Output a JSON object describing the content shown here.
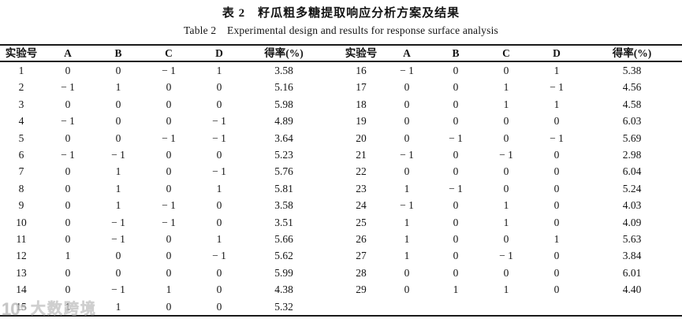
{
  "title": {
    "zh": "表 2　籽瓜粗多糖提取响应分析方案及结果",
    "en": "Table 2　Experimental design and results for response surface analysis"
  },
  "table": {
    "headers": [
      "实验号",
      "A",
      "B",
      "C",
      "D",
      "得率(%)"
    ],
    "left_rows": [
      [
        "1",
        "0",
        "0",
        "-1",
        "1",
        "3.58"
      ],
      [
        "2",
        "-1",
        "1",
        "0",
        "0",
        "5.16"
      ],
      [
        "3",
        "0",
        "0",
        "0",
        "0",
        "5.98"
      ],
      [
        "4",
        "-1",
        "0",
        "0",
        "-1",
        "4.89"
      ],
      [
        "5",
        "0",
        "0",
        "-1",
        "-1",
        "3.64"
      ],
      [
        "6",
        "-1",
        "-1",
        "0",
        "0",
        "5.23"
      ],
      [
        "7",
        "0",
        "1",
        "0",
        "-1",
        "5.76"
      ],
      [
        "8",
        "0",
        "1",
        "0",
        "1",
        "5.81"
      ],
      [
        "9",
        "0",
        "1",
        "-1",
        "0",
        "3.58"
      ],
      [
        "10",
        "0",
        "-1",
        "-1",
        "0",
        "3.51"
      ],
      [
        "11",
        "0",
        "-1",
        "0",
        "1",
        "5.66"
      ],
      [
        "12",
        "1",
        "0",
        "0",
        "-1",
        "5.62"
      ],
      [
        "13",
        "0",
        "0",
        "0",
        "0",
        "5.99"
      ],
      [
        "14",
        "0",
        "-1",
        "1",
        "0",
        "4.38"
      ],
      [
        "15",
        "1",
        "1",
        "0",
        "0",
        "5.32"
      ]
    ],
    "right_rows": [
      [
        "16",
        "-1",
        "0",
        "0",
        "1",
        "5.38"
      ],
      [
        "17",
        "0",
        "0",
        "1",
        "-1",
        "4.56"
      ],
      [
        "18",
        "0",
        "0",
        "1",
        "1",
        "4.58"
      ],
      [
        "19",
        "0",
        "0",
        "0",
        "0",
        "6.03"
      ],
      [
        "20",
        "0",
        "-1",
        "0",
        "-1",
        "5.69"
      ],
      [
        "21",
        "-1",
        "0",
        "-1",
        "0",
        "2.98"
      ],
      [
        "22",
        "0",
        "0",
        "0",
        "0",
        "6.04"
      ],
      [
        "23",
        "1",
        "-1",
        "0",
        "0",
        "5.24"
      ],
      [
        "24",
        "-1",
        "0",
        "1",
        "0",
        "4.03"
      ],
      [
        "25",
        "1",
        "0",
        "1",
        "0",
        "4.09"
      ],
      [
        "26",
        "1",
        "0",
        "0",
        "1",
        "5.63"
      ],
      [
        "27",
        "1",
        "0",
        "-1",
        "0",
        "3.84"
      ],
      [
        "28",
        "0",
        "0",
        "0",
        "0",
        "6.01"
      ],
      [
        "29",
        "0",
        "1",
        "1",
        "0",
        "4.40"
      ]
    ]
  },
  "chart_data": {
    "type": "table",
    "title": "表 2　籽瓜粗多糖提取响应分析方案及结果",
    "subtitle": "Table 2　Experimental design and results for response surface analysis",
    "columns": [
      "实验号",
      "A",
      "B",
      "C",
      "D",
      "得率(%)"
    ],
    "rows": [
      [
        1,
        0,
        0,
        -1,
        1,
        3.58
      ],
      [
        2,
        -1,
        1,
        0,
        0,
        5.16
      ],
      [
        3,
        0,
        0,
        0,
        0,
        5.98
      ],
      [
        4,
        -1,
        0,
        0,
        -1,
        4.89
      ],
      [
        5,
        0,
        0,
        -1,
        -1,
        3.64
      ],
      [
        6,
        -1,
        -1,
        0,
        0,
        5.23
      ],
      [
        7,
        0,
        1,
        0,
        -1,
        5.76
      ],
      [
        8,
        0,
        1,
        0,
        1,
        5.81
      ],
      [
        9,
        0,
        1,
        -1,
        0,
        3.58
      ],
      [
        10,
        0,
        -1,
        -1,
        0,
        3.51
      ],
      [
        11,
        0,
        -1,
        0,
        1,
        5.66
      ],
      [
        12,
        1,
        0,
        0,
        -1,
        5.62
      ],
      [
        13,
        0,
        0,
        0,
        0,
        5.99
      ],
      [
        14,
        0,
        -1,
        1,
        0,
        4.38
      ],
      [
        15,
        1,
        1,
        0,
        0,
        5.32
      ],
      [
        16,
        -1,
        0,
        0,
        1,
        5.38
      ],
      [
        17,
        0,
        0,
        1,
        -1,
        4.56
      ],
      [
        18,
        0,
        0,
        1,
        1,
        4.58
      ],
      [
        19,
        0,
        0,
        0,
        0,
        6.03
      ],
      [
        20,
        0,
        -1,
        0,
        -1,
        5.69
      ],
      [
        21,
        -1,
        0,
        -1,
        0,
        2.98
      ],
      [
        22,
        0,
        0,
        0,
        0,
        6.04
      ],
      [
        23,
        1,
        -1,
        0,
        0,
        5.24
      ],
      [
        24,
        -1,
        0,
        1,
        0,
        4.03
      ],
      [
        25,
        1,
        0,
        1,
        0,
        4.09
      ],
      [
        26,
        1,
        0,
        0,
        1,
        5.63
      ],
      [
        27,
        1,
        0,
        -1,
        0,
        3.84
      ],
      [
        28,
        0,
        0,
        0,
        0,
        6.01
      ],
      [
        29,
        0,
        1,
        1,
        0,
        4.4
      ]
    ]
  },
  "watermark": {
    "logo": "10⁵",
    "text": "大数跨境"
  }
}
